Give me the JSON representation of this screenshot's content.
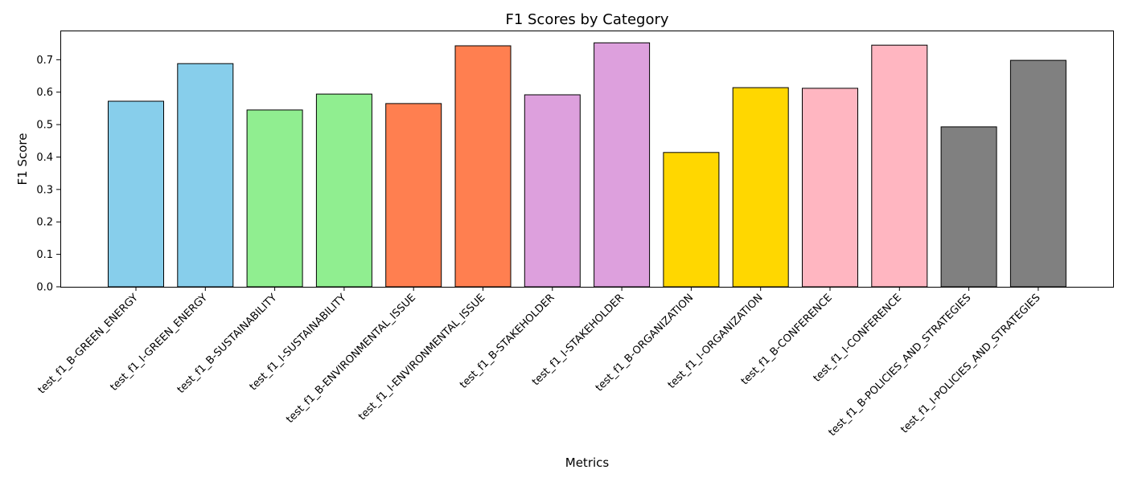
{
  "chart_data": {
    "type": "bar",
    "title": "F1 Scores by Category",
    "xlabel": "Metrics",
    "ylabel": "F1 Score",
    "ylim": [
      0,
      0.79
    ],
    "yticks": [
      "0.0",
      "0.1",
      "0.2",
      "0.3",
      "0.4",
      "0.5",
      "0.6",
      "0.7"
    ],
    "grid": false,
    "categories": [
      "test_f1_B-GREEN_ENERGY",
      "test_f1_I-GREEN_ENERGY",
      "test_f1_B-SUSTAINABILITY",
      "test_f1_I-SUSTAINABILITY",
      "test_f1_B-ENVIRONMENTAL_ISSUE",
      "test_f1_I-ENVIRONMENTAL_ISSUE",
      "test_f1_B-STAKEHOLDER",
      "test_f1_I-STAKEHOLDER",
      "test_f1_B-ORGANIZATION",
      "test_f1_I-ORGANIZATION",
      "test_f1_B-CONFERENCE",
      "test_f1_I-CONFERENCE",
      "test_f1_B-POLICIES_AND_STRATEGIES",
      "test_f1_I-POLICIES_AND_STRATEGIES"
    ],
    "values": [
      0.572,
      0.688,
      0.545,
      0.594,
      0.565,
      0.743,
      0.592,
      0.752,
      0.414,
      0.614,
      0.612,
      0.745,
      0.493,
      0.698
    ],
    "colors": [
      "#87CEEB",
      "#87CEEB",
      "#90EE90",
      "#90EE90",
      "#FF7F50",
      "#FF7F50",
      "#DDA0DD",
      "#DDA0DD",
      "#FFD700",
      "#FFD700",
      "#FFB6C1",
      "#FFB6C1",
      "#808080",
      "#808080"
    ]
  }
}
